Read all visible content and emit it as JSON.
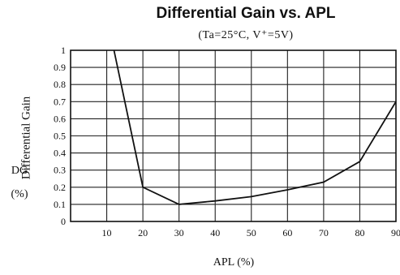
{
  "chart_data": {
    "type": "line",
    "title": "Differential Gain vs. APL",
    "subtitle": "(Ta=25°C, V⁺=5V)",
    "ylabel": "Differential Gain",
    "ylabel_symbol": "DG",
    "ylabel_unit": "(%)",
    "xlabel": "APL (%)",
    "xlim": [
      0,
      90
    ],
    "ylim": [
      0,
      1
    ],
    "x_ticks": [
      10,
      20,
      30,
      40,
      50,
      60,
      70,
      80,
      90
    ],
    "y_ticks": [
      0,
      0.1,
      0.2,
      0.3,
      0.4,
      0.5,
      0.6,
      0.7,
      0.8,
      0.9,
      1
    ],
    "y_tick_labels": [
      "0",
      "0.1",
      "0.2",
      "0.3",
      "0.4",
      "0.5",
      "0.6",
      "0.7",
      "0.8",
      "0.9",
      "1"
    ],
    "grid": true,
    "series": [
      {
        "x": [
          12,
          20,
          30,
          40,
          50,
          60,
          70,
          80,
          90
        ],
        "y": [
          1.0,
          0.2,
          0.1,
          0.12,
          0.145,
          0.185,
          0.23,
          0.35,
          0.7
        ]
      }
    ],
    "colors": {
      "line": "#111111",
      "grid": "#222222",
      "axis": "#111111"
    }
  }
}
